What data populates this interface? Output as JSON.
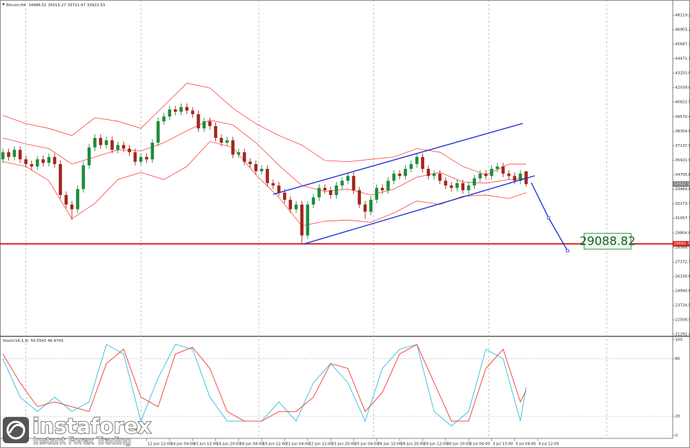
{
  "chart_data": {
    "type": "candlestick",
    "symbol": "Bitcoin,H4",
    "colors": {
      "up": "#1e8c3a",
      "down": "#a3241c",
      "band": "#ff3b3b",
      "hline": "#d21f1f",
      "drawing": "#1f2fd6",
      "last_tag": "#7a7a7a",
      "stoch_main": "#3fc1e0",
      "stoch_signal": "#f0443a",
      "target_border": "#2f9e44",
      "target_fill": "#eef8ee"
    },
    "ylim": [
      21176,
      49280
    ],
    "yticks": [
      48119.23,
      {
        "value": 46903.2,
        "label": "46903.20"
      },
      45687.15,
      {
        "value": 44471.1,
        "label": "44471.10"
      },
      {
        "value": 43255,
        "label": "43255.00"
      },
      {
        "value": 42039,
        "label": "42039.00"
      },
      40822.95,
      {
        "value": 39570.4,
        "label": "39570.40"
      },
      {
        "value": 38354,
        "label": "38354.00"
      },
      37137.95,
      {
        "value": 35921.9,
        "label": "35921.90"
      },
      34705.85,
      {
        "value": 33489.8,
        "label": "33489.80"
      },
      32273.75,
      {
        "value": 31057.7,
        "label": "31057.70"
      },
      {
        "value": 29804.8,
        "label": "29804.80"
      },
      28588.75,
      {
        "value": 27372.7,
        "label": "27372.70"
      },
      26156.65,
      {
        "value": 24940.6,
        "label": "24940.60"
      },
      23724.55,
      {
        "value": 22508.5,
        "label": "22508.50"
      },
      21292.45
    ],
    "xlim": [
      -0.5,
      116.5
    ],
    "xticks": [
      {
        "value": 25,
        "label": "12 Jun 12:00"
      },
      {
        "value": 29,
        "label": "14 Jun 04:00"
      },
      {
        "value": 33,
        "label": "15 Jun 12:00"
      },
      {
        "value": 37,
        "label": "16 Jun 20:00"
      },
      {
        "value": 41,
        "label": "18 Jun 04:00"
      },
      {
        "value": 45,
        "label": "19 Jun 12:00"
      },
      {
        "value": 49,
        "label": "21 Jun 04:00"
      },
      {
        "value": 53,
        "label": "22 Jun 12:00"
      },
      {
        "value": 57,
        "label": "23 Jun 20:00"
      },
      {
        "value": 61,
        "label": "25 Jun 04:00"
      },
      {
        "value": 65,
        "label": "26 Jun 12:00"
      },
      {
        "value": 69,
        "label": "28 Jun 20:00"
      },
      {
        "value": 73,
        "label": "29 Jun 12:00"
      },
      {
        "value": 77,
        "label": "30 Jun 20:00"
      },
      {
        "value": 81,
        "label": "2 Jul 04:00"
      },
      {
        "value": 85,
        "label": "3 Jul 13:00"
      },
      {
        "value": 89,
        "label": "5 Jul 04:00"
      },
      {
        "value": 93,
        "label": "6 Jul 12:00"
      }
    ],
    "separators": [
      4,
      24,
      44.5,
      64.5,
      84.5,
      105
    ],
    "ohlc": [
      [
        36000,
        36900,
        35700,
        36600
      ],
      [
        36600,
        36900,
        35900,
        36200
      ],
      [
        36200,
        37100,
        35900,
        36800
      ],
      [
        36800,
        37100,
        35700,
        36000
      ],
      [
        36000,
        36300,
        35300,
        35600
      ],
      [
        35600,
        35900,
        35100,
        35400
      ],
      [
        35400,
        36300,
        35100,
        36000
      ],
      [
        36000,
        36300,
        35400,
        35700
      ],
      [
        35700,
        36500,
        35400,
        36200
      ],
      [
        36200,
        36500,
        35300,
        35600
      ],
      [
        35600,
        35900,
        32700,
        33000
      ],
      [
        33000,
        33300,
        31900,
        32200
      ],
      [
        32200,
        32500,
        30900,
        31800
      ],
      [
        31800,
        33800,
        31500,
        33500
      ],
      [
        33500,
        35800,
        33200,
        35500
      ],
      [
        35500,
        37300,
        35200,
        37000
      ],
      [
        37000,
        38100,
        36700,
        37800
      ],
      [
        37800,
        38100,
        36900,
        37200
      ],
      [
        37200,
        37900,
        36900,
        37600
      ],
      [
        37600,
        37900,
        36500,
        36800
      ],
      [
        36800,
        37500,
        36500,
        37200
      ],
      [
        37200,
        37500,
        36600,
        36900
      ],
      [
        36900,
        37200,
        36300,
        36600
      ],
      [
        36600,
        36900,
        35500,
        35800
      ],
      [
        35800,
        36500,
        35500,
        36200
      ],
      [
        36200,
        36500,
        35700,
        36000
      ],
      [
        36000,
        37700,
        35700,
        37400
      ],
      [
        37400,
        39500,
        37100,
        39200
      ],
      [
        39200,
        39900,
        38900,
        39600
      ],
      [
        39600,
        40500,
        39300,
        40200
      ],
      [
        40200,
        40500,
        39700,
        40000
      ],
      [
        40000,
        40700,
        39700,
        40400
      ],
      [
        40400,
        40700,
        39800,
        40100
      ],
      [
        40100,
        40400,
        39500,
        39800
      ],
      [
        39800,
        40100,
        38300,
        38600
      ],
      [
        38600,
        39500,
        38300,
        39200
      ],
      [
        39200,
        39500,
        38500,
        38800
      ],
      [
        38800,
        39100,
        37500,
        37800
      ],
      [
        37800,
        38100,
        37100,
        37400
      ],
      [
        37400,
        37900,
        37100,
        37600
      ],
      [
        37600,
        37900,
        36100,
        36400
      ],
      [
        36400,
        36900,
        36100,
        36600
      ],
      [
        36600,
        36900,
        35500,
        35800
      ],
      [
        35800,
        36100,
        35300,
        35600
      ],
      [
        35600,
        35900,
        34700,
        35000
      ],
      [
        35000,
        35500,
        34700,
        35200
      ],
      [
        35200,
        35500,
        33700,
        34000
      ],
      [
        34000,
        34300,
        33500,
        33800
      ],
      [
        33800,
        34100,
        32900,
        33200
      ],
      [
        33200,
        33500,
        32300,
        32600
      ],
      [
        32600,
        32900,
        31500,
        31800
      ],
      [
        31800,
        32500,
        31500,
        32200
      ],
      [
        32200,
        32500,
        28900,
        29600
      ],
      [
        29600,
        32500,
        29300,
        32200
      ],
      [
        32200,
        33100,
        31900,
        32800
      ],
      [
        32800,
        33900,
        32500,
        33600
      ],
      [
        33600,
        33900,
        33100,
        33400
      ],
      [
        33400,
        33700,
        32700,
        33000
      ],
      [
        33000,
        34100,
        32700,
        33800
      ],
      [
        33800,
        34500,
        33500,
        34200
      ],
      [
        34200,
        34900,
        33900,
        34600
      ],
      [
        34600,
        34900,
        33100,
        33400
      ],
      [
        33400,
        33700,
        31900,
        32200
      ],
      [
        32200,
        32500,
        31000,
        31600
      ],
      [
        31600,
        32900,
        31300,
        32600
      ],
      [
        32600,
        33900,
        32300,
        33600
      ],
      [
        33600,
        33900,
        33100,
        33400
      ],
      [
        33400,
        34500,
        33100,
        34200
      ],
      [
        34200,
        35100,
        33900,
        34800
      ],
      [
        34800,
        35100,
        34300,
        34600
      ],
      [
        34600,
        35500,
        34300,
        35200
      ],
      [
        35200,
        35900,
        34900,
        35600
      ],
      [
        35600,
        36500,
        35300,
        36200
      ],
      [
        36200,
        36500,
        34900,
        35200
      ],
      [
        35200,
        35500,
        34300,
        34600
      ],
      [
        34600,
        35100,
        34300,
        34800
      ],
      [
        34800,
        35100,
        33900,
        34200
      ],
      [
        34200,
        34500,
        33500,
        33800
      ],
      [
        33800,
        34100,
        33300,
        33600
      ],
      [
        33600,
        34300,
        33300,
        34000
      ],
      [
        34000,
        34300,
        33100,
        33400
      ],
      [
        33400,
        34100,
        33100,
        33800
      ],
      [
        33800,
        34700,
        33500,
        34400
      ],
      [
        34400,
        35100,
        34100,
        34800
      ],
      [
        34800,
        35100,
        34300,
        34600
      ],
      [
        34600,
        35500,
        34300,
        35200
      ],
      [
        35200,
        35700,
        34900,
        35400
      ],
      [
        35400,
        35700,
        34500,
        34800
      ],
      [
        34800,
        35100,
        34300,
        34600
      ],
      [
        34600,
        34900,
        33900,
        34200
      ],
      [
        34200,
        35100,
        33900,
        34800
      ],
      [
        34986.51,
        35015.27,
        33721.97,
        33922.53
      ]
    ],
    "bands": {
      "x": [
        0,
        4,
        8,
        12,
        16,
        20,
        24,
        28,
        32,
        36,
        40,
        44,
        48,
        52,
        56,
        60,
        64,
        68,
        72,
        76,
        80,
        84,
        88,
        91
      ],
      "upper": [
        39700,
        39000,
        38600,
        38000,
        39500,
        39200,
        38600,
        40500,
        42400,
        42000,
        40300,
        39000,
        38000,
        37200,
        35900,
        35800,
        36000,
        36200,
        36900,
        36600,
        35400,
        34700,
        35600,
        35600
      ],
      "middle": [
        37800,
        37300,
        36900,
        35600,
        36200,
        36800,
        36700,
        37400,
        38400,
        39300,
        38900,
        37400,
        35500,
        33800,
        33300,
        33500,
        33000,
        33500,
        34500,
        34900,
        34100,
        34000,
        34300,
        34400
      ],
      "lower": [
        35800,
        35400,
        34200,
        31000,
        32300,
        34300,
        34900,
        34300,
        35400,
        37500,
        37000,
        34700,
        32800,
        30400,
        30800,
        30900,
        30700,
        31500,
        32500,
        32200,
        32900,
        33000,
        32700,
        33200
      ]
    },
    "hline": 28899.77,
    "target": 29088.82,
    "drawings": [
      {
        "x": [
          47,
          90.4
        ],
        "y": [
          33060,
          39020
        ]
      },
      {
        "x": [
          52.3,
          92.5
        ],
        "y": [
          28880,
          34620
        ]
      },
      {
        "x": [
          91.9,
          94.9,
          98.2
        ],
        "y": [
          34040,
          31090,
          28310
        ]
      }
    ],
    "indicator": {
      "type": "stochastic",
      "name": "Stoch(14,3,3)",
      "ylim": [
        -3,
        102
      ],
      "yticks": [
        100,
        80,
        20,
        0
      ],
      "levels": [
        80,
        20
      ],
      "x": [
        0,
        3,
        6,
        9,
        12,
        15,
        18,
        21,
        24,
        27,
        30,
        33,
        36,
        39,
        42,
        45,
        48,
        51,
        54,
        57,
        60,
        63,
        66,
        69,
        72,
        75,
        78,
        81,
        84,
        87,
        90,
        91
      ],
      "main": [
        80,
        40,
        25,
        40,
        25,
        35,
        95,
        85,
        15,
        60,
        95,
        90,
        40,
        15,
        15,
        15,
        35,
        15,
        55,
        75,
        55,
        15,
        70,
        90,
        95,
        25,
        10,
        25,
        90,
        80,
        15,
        50.5543
      ],
      "signal": [
        85,
        55,
        30,
        35,
        30,
        25,
        75,
        90,
        40,
        30,
        85,
        92,
        70,
        25,
        15,
        15,
        25,
        25,
        40,
        75,
        70,
        25,
        45,
        85,
        95,
        55,
        15,
        15,
        70,
        90,
        35,
        46.9743
      ]
    },
    "logo": {
      "name": "instaforex",
      "tagline": "Instant Forex Trading"
    }
  }
}
